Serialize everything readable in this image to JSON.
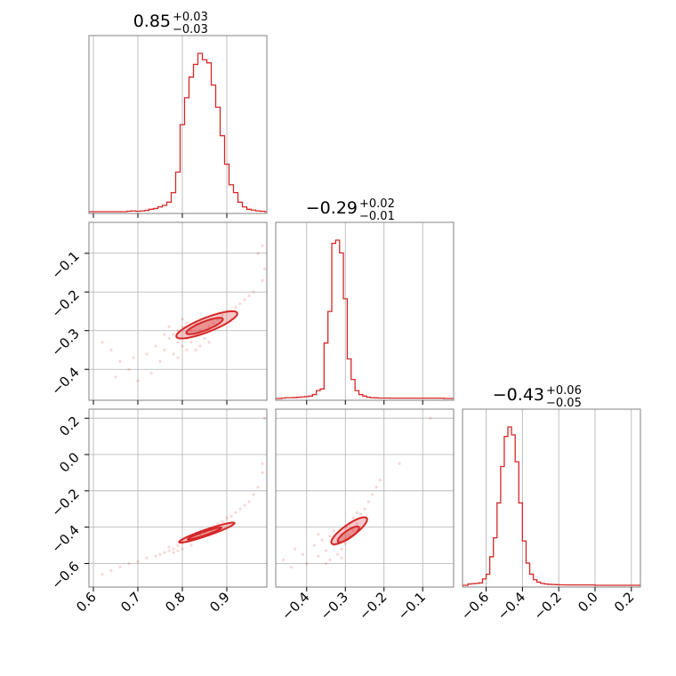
{
  "chart_data": {
    "type": "corner",
    "color": "#d62728",
    "grid": true,
    "titles": [
      {
        "value": "0.85",
        "plus": "+0.03",
        "minus": "−0.03"
      },
      {
        "value": "−0.29",
        "plus": "+0.02",
        "minus": "−0.01"
      },
      {
        "value": "−0.43",
        "plus": "+0.06",
        "minus": "−0.05"
      }
    ],
    "params": [
      {
        "range": [
          0.59,
          0.99
        ],
        "ticks": [
          0.6,
          0.7,
          0.8,
          0.9
        ],
        "tick_labels": [
          "0.6",
          "0.7",
          "0.8",
          "0.9"
        ]
      },
      {
        "range": [
          -0.48,
          -0.02
        ],
        "ticks": [
          -0.4,
          -0.3,
          -0.2,
          -0.1
        ],
        "tick_labels": [
          "−0.4",
          "−0.3",
          "−0.2",
          "−0.1"
        ]
      },
      {
        "range": [
          -0.73,
          0.25
        ],
        "ticks": [
          -0.6,
          -0.4,
          -0.2,
          0.0,
          0.2
        ],
        "tick_labels": [
          "−0.6",
          "−0.4",
          "−0.2",
          "0.0",
          "0.2"
        ]
      }
    ],
    "hist": [
      {
        "centers": [
          0.59,
          0.6,
          0.61,
          0.62,
          0.63,
          0.64,
          0.65,
          0.66,
          0.67,
          0.68,
          0.69,
          0.7,
          0.71,
          0.72,
          0.73,
          0.74,
          0.75,
          0.76,
          0.77,
          0.78,
          0.79,
          0.8,
          0.81,
          0.82,
          0.83,
          0.84,
          0.85,
          0.86,
          0.87,
          0.88,
          0.89,
          0.9,
          0.91,
          0.92,
          0.93,
          0.94,
          0.95,
          0.96,
          0.97,
          0.98,
          0.99
        ],
        "counts": [
          0,
          0,
          0,
          0,
          0,
          0,
          0,
          0,
          0,
          0.003,
          0.005,
          0.003,
          0.005,
          0.008,
          0.015,
          0.02,
          0.03,
          0.04,
          0.06,
          0.12,
          0.25,
          0.55,
          0.72,
          0.85,
          0.93,
          1.0,
          0.96,
          0.94,
          0.8,
          0.66,
          0.48,
          0.3,
          0.17,
          0.12,
          0.06,
          0.03,
          0.015,
          0.01,
          0.005,
          0.003,
          0
        ]
      },
      {
        "centers": [
          -0.48,
          -0.47,
          -0.46,
          -0.45,
          -0.44,
          -0.43,
          -0.42,
          -0.41,
          -0.4,
          -0.39,
          -0.38,
          -0.37,
          -0.36,
          -0.35,
          -0.34,
          -0.33,
          -0.32,
          -0.31,
          -0.3,
          -0.29,
          -0.28,
          -0.27,
          -0.26,
          -0.25,
          -0.24,
          -0.23,
          -0.22,
          -0.21,
          -0.2,
          -0.19,
          -0.18,
          -0.17,
          -0.16,
          -0.15,
          -0.14,
          -0.13,
          -0.12,
          -0.11,
          -0.1,
          -0.09,
          -0.08,
          -0.07,
          -0.06,
          -0.05,
          -0.04,
          -0.03,
          -0.02
        ],
        "counts": [
          0,
          0,
          0.003,
          0.005,
          0.005,
          0.006,
          0.008,
          0.01,
          0.012,
          0.015,
          0.025,
          0.05,
          0.06,
          0.35,
          0.55,
          0.98,
          1.0,
          0.92,
          0.63,
          0.25,
          0.12,
          0.05,
          0.025,
          0.015,
          0.008,
          0.005,
          0.004,
          0.003,
          0.003,
          0.003,
          0.002,
          0.002,
          0.002,
          0.002,
          0.002,
          0.002,
          0.002,
          0.002,
          0.002,
          0.002,
          0.002,
          0.002,
          0.002,
          0.002,
          0,
          0,
          0
        ]
      },
      {
        "centers": [
          -0.73,
          -0.71,
          -0.69,
          -0.67,
          -0.65,
          -0.63,
          -0.61,
          -0.59,
          -0.57,
          -0.55,
          -0.53,
          -0.51,
          -0.49,
          -0.47,
          -0.45,
          -0.43,
          -0.41,
          -0.39,
          -0.37,
          -0.35,
          -0.33,
          -0.31,
          -0.29,
          -0.27,
          -0.25,
          -0.23,
          -0.21,
          -0.19,
          -0.17,
          -0.15,
          -0.13,
          -0.11,
          -0.09,
          -0.07,
          -0.05,
          -0.03,
          -0.01,
          0.01,
          0.03,
          0.05,
          0.07,
          0.09,
          0.11,
          0.13,
          0.15,
          0.17,
          0.19,
          0.21,
          0.23,
          0.25
        ],
        "counts": [
          0,
          0,
          0.008,
          0.01,
          0.012,
          0.015,
          0.04,
          0.07,
          0.18,
          0.3,
          0.52,
          0.75,
          0.94,
          1.0,
          0.95,
          0.78,
          0.52,
          0.28,
          0.14,
          0.07,
          0.035,
          0.02,
          0.012,
          0.008,
          0.006,
          0.005,
          0.004,
          0.003,
          0.003,
          0.002,
          0.002,
          0.002,
          0.002,
          0.002,
          0.002,
          0.002,
          0.002,
          0,
          0,
          0,
          0,
          0,
          0,
          0,
          0,
          0,
          0,
          0,
          0,
          0
        ]
      }
    ],
    "scatter": {
      "p1_vs_p0": [
        [
          0.62,
          -0.33
        ],
        [
          0.64,
          -0.35
        ],
        [
          0.65,
          -0.42
        ],
        [
          0.66,
          -0.38
        ],
        [
          0.68,
          -0.4
        ],
        [
          0.69,
          -0.37
        ],
        [
          0.7,
          -0.43
        ],
        [
          0.72,
          -0.36
        ],
        [
          0.73,
          -0.41
        ],
        [
          0.74,
          -0.34
        ],
        [
          0.75,
          -0.38
        ],
        [
          0.76,
          -0.35
        ],
        [
          0.77,
          -0.32
        ],
        [
          0.78,
          -0.36
        ],
        [
          0.78,
          -0.31
        ],
        [
          0.79,
          -0.33
        ],
        [
          0.79,
          -0.3
        ],
        [
          0.8,
          -0.34
        ],
        [
          0.8,
          -0.29
        ],
        [
          0.81,
          -0.32
        ],
        [
          0.81,
          -0.35
        ],
        [
          0.82,
          -0.3
        ],
        [
          0.82,
          -0.33
        ],
        [
          0.83,
          -0.31
        ],
        [
          0.83,
          -0.28
        ],
        [
          0.84,
          -0.3
        ],
        [
          0.85,
          -0.32
        ],
        [
          0.86,
          -0.29
        ],
        [
          0.87,
          -0.28
        ],
        [
          0.88,
          -0.27
        ],
        [
          0.89,
          -0.26
        ],
        [
          0.9,
          -0.25
        ],
        [
          0.91,
          -0.27
        ],
        [
          0.92,
          -0.24
        ],
        [
          0.93,
          -0.23
        ],
        [
          0.94,
          -0.22
        ],
        [
          0.95,
          -0.21
        ],
        [
          0.96,
          -0.2
        ],
        [
          0.97,
          -0.1
        ],
        [
          0.98,
          -0.17
        ],
        [
          0.985,
          -0.14
        ],
        [
          0.98,
          -0.08
        ],
        [
          0.76,
          -0.31
        ],
        [
          0.77,
          -0.29
        ],
        [
          0.8,
          -0.27
        ],
        [
          0.84,
          -0.34
        ],
        [
          0.86,
          -0.33
        ],
        [
          0.79,
          -0.37
        ],
        [
          0.81,
          -0.28
        ],
        [
          0.83,
          -0.35
        ]
      ],
      "p2_vs_p0": [
        [
          0.62,
          -0.66
        ],
        [
          0.64,
          -0.64
        ],
        [
          0.66,
          -0.62
        ],
        [
          0.68,
          -0.6
        ],
        [
          0.7,
          -0.59
        ],
        [
          0.72,
          -0.57
        ],
        [
          0.74,
          -0.56
        ],
        [
          0.75,
          -0.55
        ],
        [
          0.76,
          -0.54
        ],
        [
          0.77,
          -0.53
        ],
        [
          0.78,
          -0.52
        ],
        [
          0.78,
          -0.54
        ],
        [
          0.79,
          -0.5
        ],
        [
          0.79,
          -0.53
        ],
        [
          0.8,
          -0.49
        ],
        [
          0.8,
          -0.52
        ],
        [
          0.81,
          -0.48
        ],
        [
          0.82,
          -0.47
        ],
        [
          0.82,
          -0.5
        ],
        [
          0.83,
          -0.46
        ],
        [
          0.84,
          -0.44
        ],
        [
          0.85,
          -0.43
        ],
        [
          0.86,
          -0.41
        ],
        [
          0.87,
          -0.4
        ],
        [
          0.88,
          -0.38
        ],
        [
          0.89,
          -0.37
        ],
        [
          0.9,
          -0.35
        ],
        [
          0.91,
          -0.34
        ],
        [
          0.92,
          -0.32
        ],
        [
          0.93,
          -0.3
        ],
        [
          0.94,
          -0.28
        ],
        [
          0.95,
          -0.26
        ],
        [
          0.96,
          -0.22
        ],
        [
          0.97,
          -0.18
        ],
        [
          0.98,
          -0.05
        ],
        [
          0.985,
          0.2
        ],
        [
          0.98,
          -0.1
        ],
        [
          0.77,
          -0.51
        ],
        [
          0.8,
          -0.47
        ],
        [
          0.84,
          -0.46
        ]
      ],
      "p2_vs_p1": [
        [
          -0.46,
          -0.58
        ],
        [
          -0.44,
          -0.62
        ],
        [
          -0.43,
          -0.52
        ],
        [
          -0.41,
          -0.55
        ],
        [
          -0.4,
          -0.6
        ],
        [
          -0.38,
          -0.5
        ],
        [
          -0.37,
          -0.56
        ],
        [
          -0.36,
          -0.47
        ],
        [
          -0.35,
          -0.53
        ],
        [
          -0.34,
          -0.45
        ],
        [
          -0.34,
          -0.58
        ],
        [
          -0.33,
          -0.5
        ],
        [
          -0.33,
          -0.42
        ],
        [
          -0.32,
          -0.55
        ],
        [
          -0.32,
          -0.47
        ],
        [
          -0.31,
          -0.52
        ],
        [
          -0.31,
          -0.44
        ],
        [
          -0.3,
          -0.49
        ],
        [
          -0.3,
          -0.4
        ],
        [
          -0.29,
          -0.45
        ],
        [
          -0.29,
          -0.38
        ],
        [
          -0.28,
          -0.42
        ],
        [
          -0.28,
          -0.35
        ],
        [
          -0.27,
          -0.38
        ],
        [
          -0.27,
          -0.32
        ],
        [
          -0.26,
          -0.33
        ],
        [
          -0.25,
          -0.3
        ],
        [
          -0.24,
          -0.26
        ],
        [
          -0.23,
          -0.22
        ],
        [
          -0.22,
          -0.18
        ],
        [
          -0.21,
          -0.14
        ],
        [
          -0.16,
          -0.05
        ],
        [
          -0.08,
          0.2
        ],
        [
          -0.35,
          -0.6
        ],
        [
          -0.37,
          -0.44
        ],
        [
          -0.31,
          -0.57
        ]
      ]
    },
    "contours": {
      "p1_vs_p0": [
        {
          "level": "outer",
          "cx": 0.855,
          "cy": -0.285,
          "a": 0.075,
          "b": 0.018,
          "angle": 0.43
        },
        {
          "level": "inner",
          "cx": 0.85,
          "cy": -0.288,
          "a": 0.045,
          "b": 0.011,
          "angle": 0.43
        }
      ],
      "p2_vs_p0": [
        {
          "level": "outer",
          "cx": 0.855,
          "cy": -0.43,
          "a": 0.082,
          "b": 0.014,
          "angle": 0.72
        },
        {
          "level": "inner",
          "cx": 0.85,
          "cy": -0.435,
          "a": 0.05,
          "b": 0.008,
          "angle": 0.72
        }
      ],
      "p2_vs_p1": [
        {
          "level": "outer",
          "cx": -0.29,
          "cy": -0.42,
          "a": 0.085,
          "b": 0.022,
          "angle": 1.05
        },
        {
          "level": "inner",
          "cx": -0.292,
          "cy": -0.44,
          "a": 0.05,
          "b": 0.014,
          "angle": 1.05
        }
      ]
    }
  }
}
